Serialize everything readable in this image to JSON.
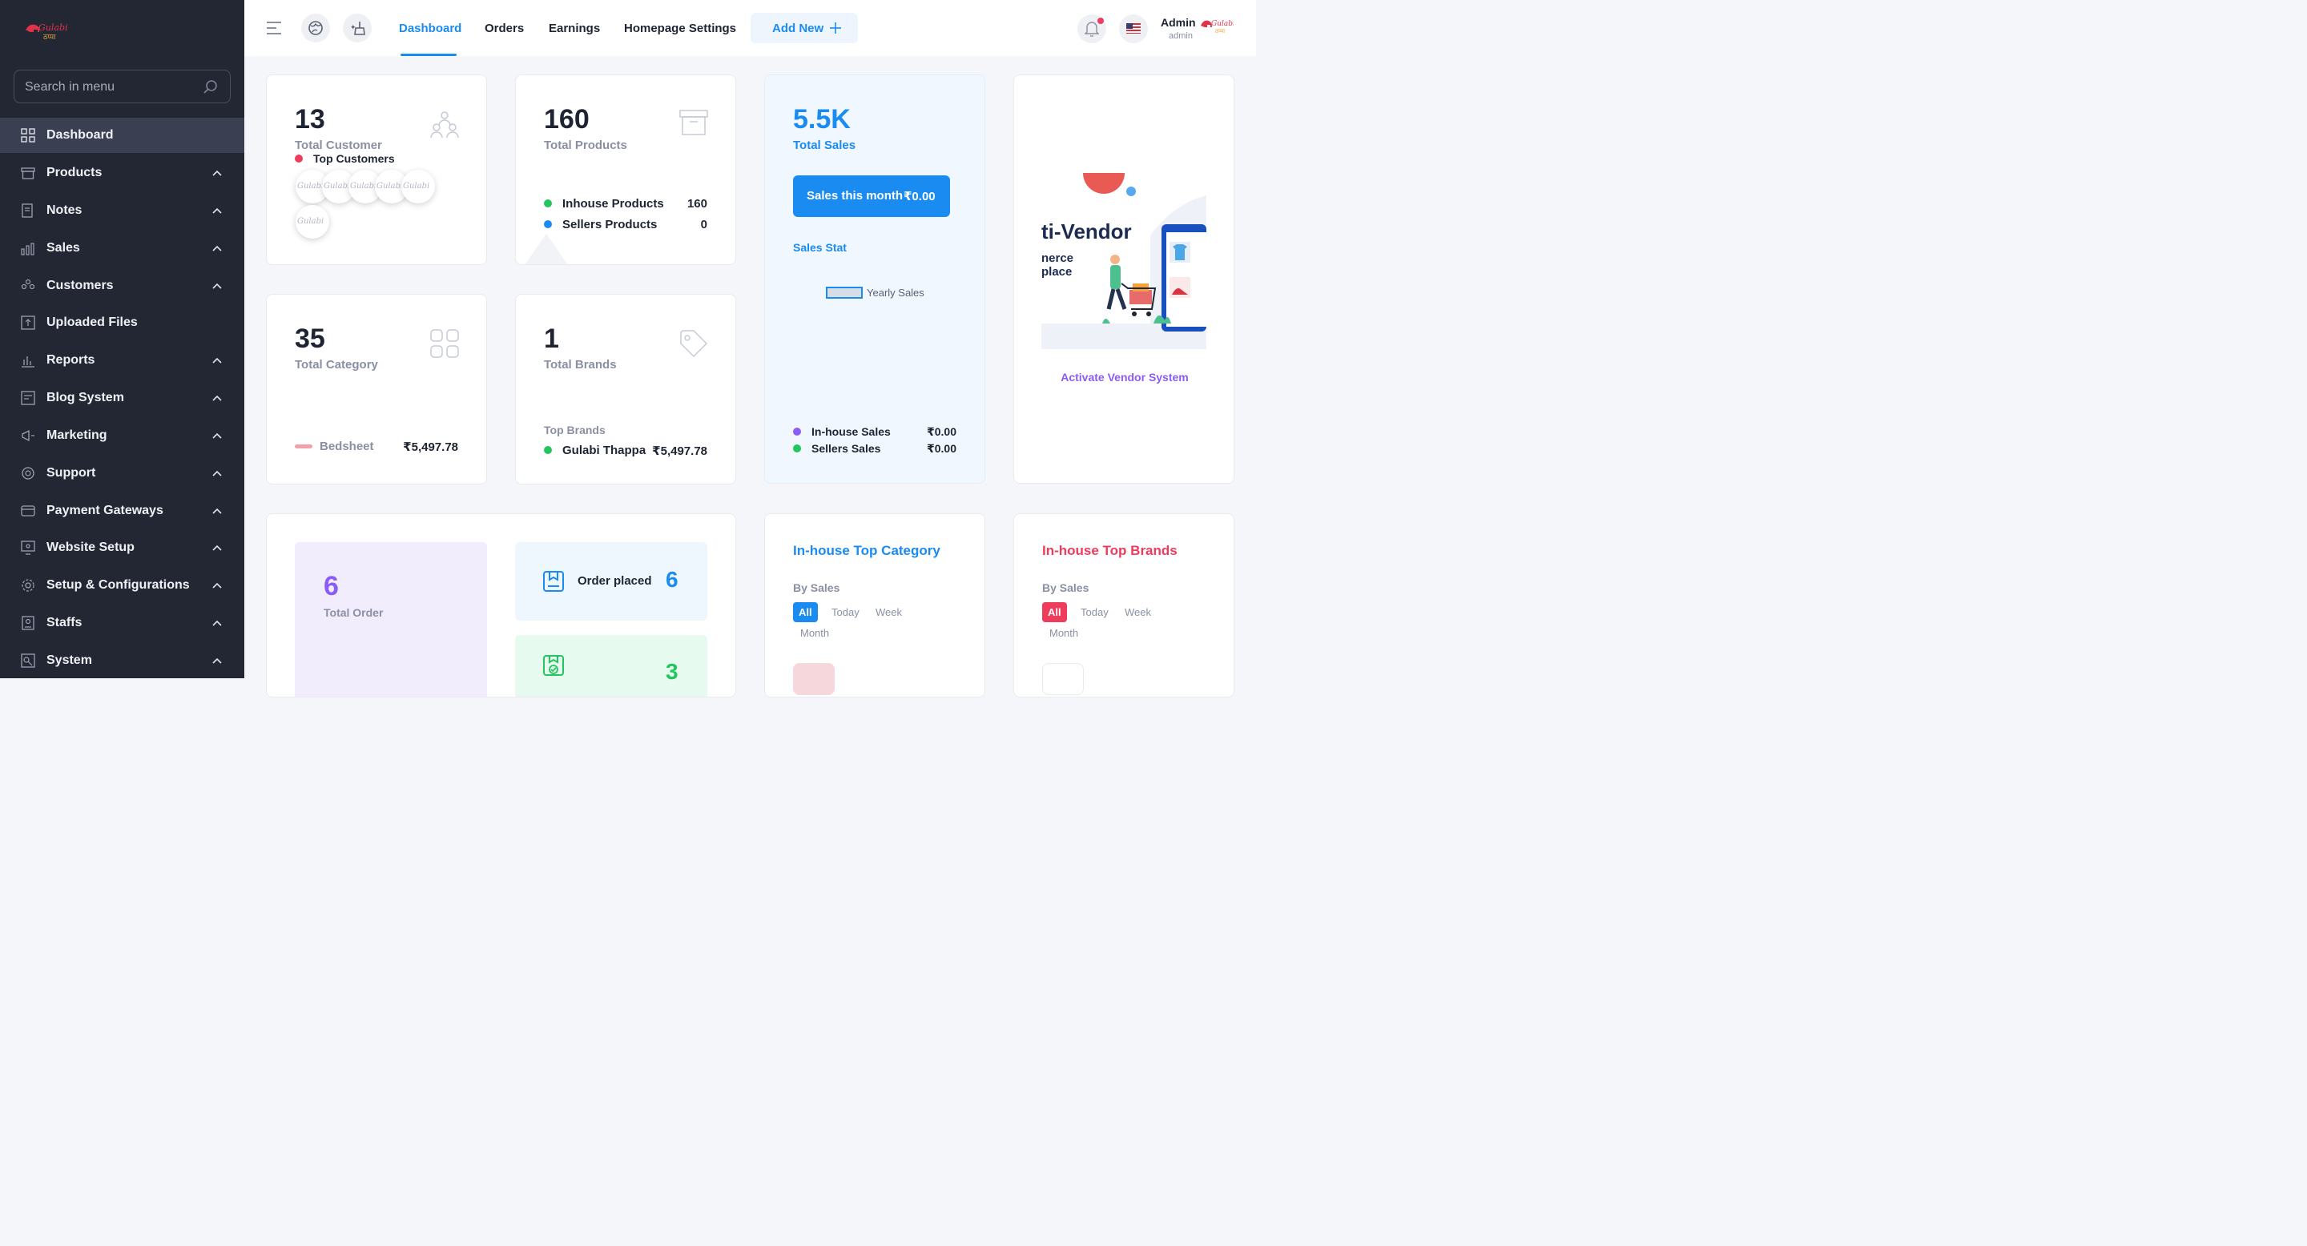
{
  "brand": {
    "logo_text": "Gulabi",
    "logo_sub": "ठप्पा"
  },
  "sidebar": {
    "search_placeholder": "Search in menu",
    "items": [
      {
        "label": "Dashboard",
        "icon": "grid-icon"
      },
      {
        "label": "Products",
        "icon": "box-icon"
      },
      {
        "label": "Notes",
        "icon": "note-icon"
      },
      {
        "label": "Sales",
        "icon": "chart-icon"
      },
      {
        "label": "Customers",
        "icon": "users-icon"
      },
      {
        "label": "Uploaded Files",
        "icon": "upload-icon"
      },
      {
        "label": "Reports",
        "icon": "report-icon"
      },
      {
        "label": "Blog System",
        "icon": "blog-icon"
      },
      {
        "label": "Marketing",
        "icon": "megaphone-icon"
      },
      {
        "label": "Support",
        "icon": "support-icon"
      },
      {
        "label": "Payment Gateways",
        "icon": "card-icon"
      },
      {
        "label": "Website Setup",
        "icon": "monitor-icon"
      },
      {
        "label": "Setup & Configurations",
        "icon": "gear-icon"
      },
      {
        "label": "Staffs",
        "icon": "staff-icon"
      },
      {
        "label": "System",
        "icon": "system-icon"
      }
    ]
  },
  "header": {
    "tabs": [
      "Dashboard",
      "Orders",
      "Earnings",
      "Homepage Settings"
    ],
    "add_new": "Add New",
    "user_name": "Admin",
    "user_role": "admin"
  },
  "cards": {
    "customers": {
      "value": "13",
      "label": "Total Customer",
      "top_label": "Top Customers"
    },
    "products": {
      "value": "160",
      "label": "Total Products",
      "inhouse_label": "Inhouse Products",
      "inhouse_value": "160",
      "sellers_label": "Sellers Products",
      "sellers_value": "0"
    },
    "sales": {
      "value": "5.5K",
      "label": "Total Sales",
      "month_label": "Sales this month",
      "month_value": "₹0.00",
      "stat_title": "Sales Stat",
      "legend": "Yearly Sales",
      "inhouse_label": "In-house Sales",
      "inhouse_value": "₹0.00",
      "sellers_label": "Sellers Sales",
      "sellers_value": "₹0.00"
    },
    "vendor": {
      "banner_title": "ti-Vendor",
      "banner_line1": "nerce",
      "banner_line2": "place",
      "link": "Activate Vendor System"
    },
    "category": {
      "value": "35",
      "label": "Total Category",
      "item_name": "Bedsheet",
      "item_value": "₹5,497.78"
    },
    "brands": {
      "value": "1",
      "label": "Total Brands",
      "top_label": "Top Brands",
      "item_name": "Gulabi Thappa",
      "item_value": "₹5,497.78"
    },
    "orders": {
      "total_value": "6",
      "total_label": "Total Order",
      "placed_label": "Order placed",
      "placed_value": "6",
      "confirmed_value": "3"
    },
    "top_category": {
      "title": "In-house Top Category",
      "by": "By Sales",
      "filters": [
        "All",
        "Today",
        "Week",
        "Month"
      ]
    },
    "top_brands": {
      "title": "In-house Top Brands",
      "by": "By Sales",
      "filters": [
        "All",
        "Today",
        "Week",
        "Month"
      ]
    }
  },
  "colors": {
    "accent": "#1a8bf0",
    "sidebar_bg": "#232734",
    "red": "#ef3b5c",
    "green": "#22c55e",
    "purple": "#8b5cf6"
  }
}
